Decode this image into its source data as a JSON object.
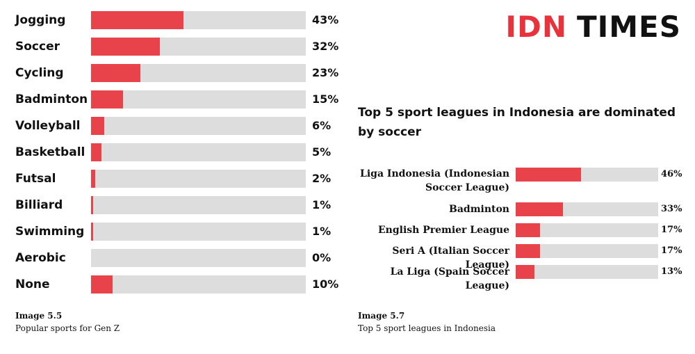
{
  "logo": {
    "part1": "IDN",
    "part2": "TIMES"
  },
  "chart_data": [
    {
      "type": "bar",
      "orientation": "horizontal",
      "categories": [
        "Jogging",
        "Soccer",
        "Cycling",
        "Badminton",
        "Volleyball",
        "Basketball",
        "Futsal",
        "Billiard",
        "Swimming",
        "Aerobic",
        "None"
      ],
      "values": [
        43,
        32,
        23,
        15,
        6,
        5,
        2,
        1,
        1,
        0,
        10
      ],
      "value_labels": [
        "43%",
        "32%",
        "23%",
        "15%",
        "6%",
        "5%",
        "2%",
        "1%",
        "1%",
        "0%",
        "10%"
      ],
      "unit": "%",
      "xlim": [
        0,
        100
      ],
      "bar_color": "#e8434a",
      "track_color": "#dddddd",
      "caption_number": "Image 5.5",
      "caption_text": "Popular sports  for Gen Z"
    },
    {
      "type": "bar",
      "orientation": "horizontal",
      "title": "Top 5 sport leagues in Indonesia are dominated by soccer",
      "categories": [
        "Liga Indonesia (Indonesian Soccer League)",
        "Badminton",
        "English Premier League",
        "Seri A (Italian Soccer League)",
        "La Liga (Spain Soccer League)"
      ],
      "values": [
        46,
        33,
        17,
        17,
        13
      ],
      "value_labels": [
        "46%",
        "33%",
        "17%",
        "17%",
        "13%"
      ],
      "unit": "%",
      "xlim": [
        0,
        100
      ],
      "bar_color": "#e8434a",
      "track_color": "#dddddd",
      "caption_number": "Image 5.7",
      "caption_text": "Top 5 sport leagues in Indonesia"
    }
  ]
}
